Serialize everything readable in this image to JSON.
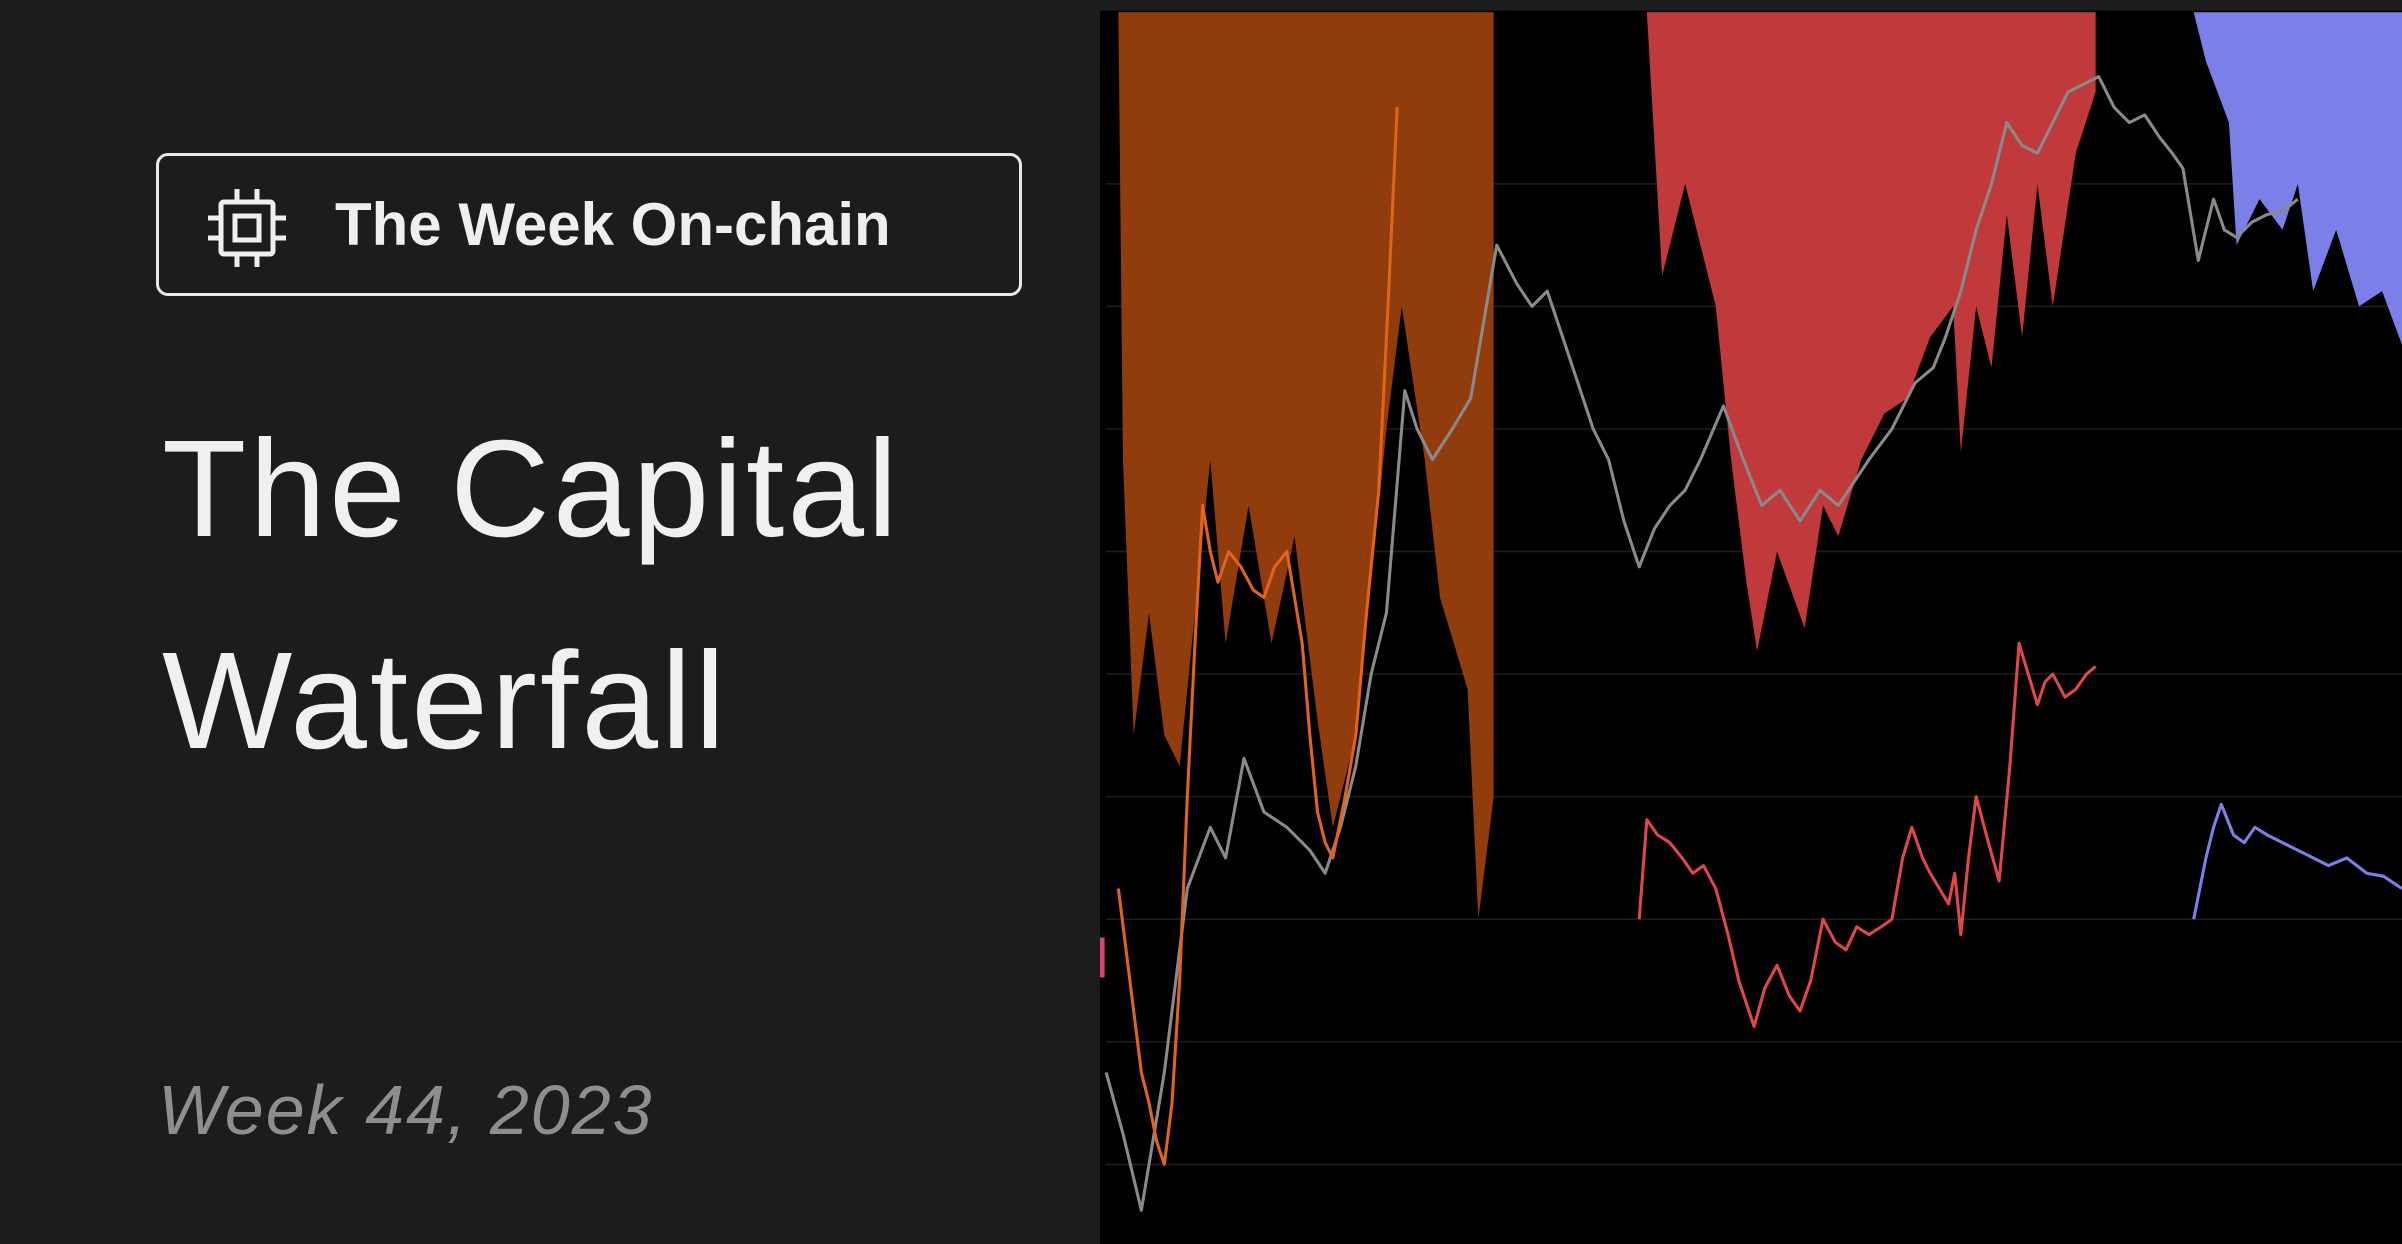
{
  "badge": {
    "title": "The Week On-chain"
  },
  "title_lines": [
    "The Capital",
    "Waterfall"
  ],
  "subtitle": "Week 44, 2023"
}
